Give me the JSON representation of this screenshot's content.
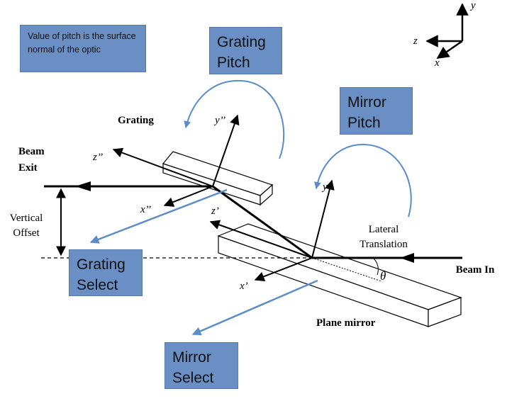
{
  "notes": {
    "pitch_note": "Value of pitch is the surface normal of the optic"
  },
  "boxes": {
    "grating_pitch": "Grating Pitch",
    "mirror_pitch": "Mirror Pitch",
    "grating_select": "Grating Select",
    "mirror_select": "Mirror Select"
  },
  "labels": {
    "grating": "Grating",
    "beam_exit": "Beam Exit",
    "vertical_offset": "Vertical Offset",
    "lateral_translation": "Lateral Translation",
    "beam_in": "Beam In",
    "plane_mirror": "Plane mirror",
    "theta": "θ"
  },
  "axes": {
    "ref_x": "x",
    "ref_y": "y",
    "ref_z": "z",
    "grating_x": "x’’",
    "grating_y": "y’’",
    "grating_z": "z’’",
    "mirror_x": "x’",
    "mirror_y": "y’",
    "mirror_z": "z’"
  },
  "colors": {
    "box_fill": "#6a8fc4",
    "blue_arrow": "#5b8cc8",
    "line": "#000000"
  }
}
